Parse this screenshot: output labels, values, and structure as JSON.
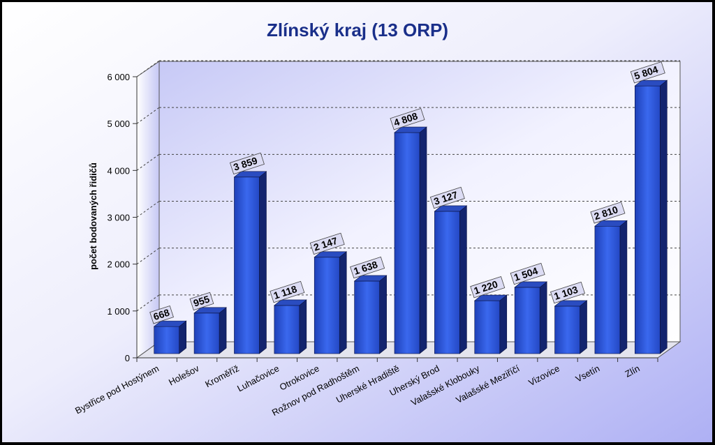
{
  "chart_data": {
    "type": "bar",
    "title": "Zlínský kraj (13 ORP)",
    "xlabel": "",
    "ylabel": "počet bodovaných řidičů",
    "ylim": [
      0,
      6000
    ],
    "y_ticks": [
      0,
      1000,
      2000,
      3000,
      4000,
      5000,
      6000
    ],
    "y_tick_labels": [
      "0",
      "1 000",
      "2 000",
      "3 000",
      "4 000",
      "5 000",
      "6 000"
    ],
    "categories": [
      "Bystřice pod Hostýnem",
      "Holešov",
      "Kroměříž",
      "Luhačovice",
      "Otrokovice",
      "Rožnov pod Radhoštěm",
      "Uherské Hradiště",
      "Uherský Brod",
      "Valašské Klobouky",
      "Valašské Meziříčí",
      "Vizovice",
      "Vsetín",
      "Zlín"
    ],
    "values": [
      668,
      955,
      3859,
      1118,
      2147,
      1638,
      4808,
      3127,
      1220,
      1504,
      1103,
      2810,
      5804
    ],
    "value_labels": [
      "668",
      "955",
      "3 859",
      "1 118",
      "2 147",
      "1 638",
      "4 808",
      "3 127",
      "1 220",
      "1 504",
      "1 103",
      "2 810",
      "5 804"
    ],
    "grid": true,
    "legend": "none",
    "colors": {
      "bar_front": "#2f5ae0",
      "bar_side": "#13246e",
      "bar_top": "#2a4cc0",
      "title": "#1a2f8a",
      "background_light": "#ffffff",
      "background_dark": "#b8b8f8"
    }
  }
}
